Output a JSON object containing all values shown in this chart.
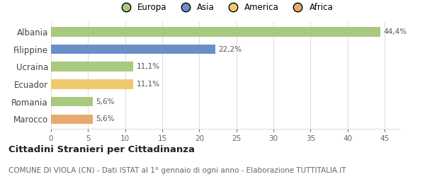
{
  "categories": [
    "Albania",
    "Filippine",
    "Ucraina",
    "Ecuador",
    "Romania",
    "Marocco"
  ],
  "values": [
    44.4,
    22.2,
    11.1,
    11.1,
    5.6,
    5.6
  ],
  "labels": [
    "44,4%",
    "22,2%",
    "11,1%",
    "11,1%",
    "5,6%",
    "5,6%"
  ],
  "colors": [
    "#a8c97f",
    "#6b8ec9",
    "#a8c97f",
    "#f0c96e",
    "#a8c97f",
    "#e8a96e"
  ],
  "legend": [
    {
      "label": "Europa",
      "color": "#a8c97f"
    },
    {
      "label": "Asia",
      "color": "#6b8ec9"
    },
    {
      "label": "America",
      "color": "#f0c96e"
    },
    {
      "label": "Africa",
      "color": "#e8a96e"
    }
  ],
  "xlim": [
    0,
    47
  ],
  "xticks": [
    0,
    5,
    10,
    15,
    20,
    25,
    30,
    35,
    40,
    45
  ],
  "title": "Cittadini Stranieri per Cittadinanza",
  "subtitle": "COMUNE DI VIOLA (CN) - Dati ISTAT al 1° gennaio di ogni anno - Elaborazione TUTTITALIA.IT",
  "title_fontsize": 9.5,
  "subtitle_fontsize": 7.5,
  "background_color": "#ffffff",
  "grid_color": "#e0e0e0"
}
